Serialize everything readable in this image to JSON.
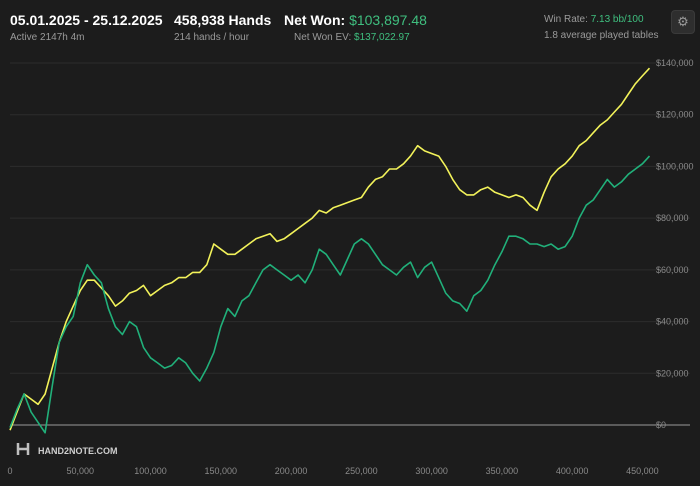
{
  "header": {
    "date_range": "05.01.2025 - 25.12.2025",
    "active_time": "Active 2147h 4m",
    "hands": "458,938 Hands",
    "hands_rate": "214 hands / hour",
    "net_won_label": "Net Won:",
    "net_won_value": "$103,897.48",
    "net_won_ev_label": "Net Won  EV:",
    "net_won_ev_value": "$137,022.97",
    "win_rate_label": "Win Rate:",
    "win_rate_value": "7.13 bb/100",
    "tables": "1.8 average played tables",
    "settings_icon": "gear-icon"
  },
  "logo_text": "HAND2NOTE.COM",
  "colors": {
    "net_won": "#21b07a",
    "net_won_ev": "#f2f25a",
    "background": "#1c1c1c",
    "grid": "#2d2d2d",
    "zero_line": "#9a9a9a"
  },
  "chart_data": {
    "type": "line",
    "xlim": [
      0,
      458938
    ],
    "ylim": [
      -10000,
      145000
    ],
    "x_ticks": [
      "0",
      "50,000",
      "100,000",
      "150,000",
      "200,000",
      "250,000",
      "300,000",
      "350,000",
      "400,000",
      "450,000"
    ],
    "x_tick_values": [
      0,
      50000,
      100000,
      150000,
      200000,
      250000,
      300000,
      350000,
      400000,
      450000
    ],
    "y_ticks": [
      "$0",
      "$20,000",
      "$40,000",
      "$60,000",
      "$80,000",
      "$100,000",
      "$120,000",
      "$140,000"
    ],
    "y_tick_values": [
      0,
      20000,
      40000,
      60000,
      80000,
      100000,
      120000,
      140000
    ],
    "grid": true,
    "series": [
      {
        "name": "Net Won EV",
        "color": "#f2f25a",
        "x": [
          0,
          5000,
          10000,
          15000,
          20000,
          25000,
          30000,
          35000,
          40000,
          45000,
          50000,
          55000,
          60000,
          65000,
          70000,
          75000,
          80000,
          85000,
          90000,
          95000,
          100000,
          105000,
          110000,
          115000,
          120000,
          125000,
          130000,
          135000,
          140000,
          145000,
          150000,
          155000,
          160000,
          165000,
          170000,
          175000,
          180000,
          185000,
          190000,
          195000,
          200000,
          205000,
          210000,
          215000,
          220000,
          225000,
          230000,
          235000,
          240000,
          245000,
          250000,
          255000,
          260000,
          265000,
          270000,
          275000,
          280000,
          285000,
          290000,
          295000,
          300000,
          305000,
          310000,
          315000,
          320000,
          325000,
          330000,
          335000,
          340000,
          345000,
          350000,
          355000,
          360000,
          365000,
          370000,
          375000,
          380000,
          385000,
          390000,
          395000,
          400000,
          405000,
          410000,
          415000,
          420000,
          425000,
          430000,
          435000,
          440000,
          445000,
          450000,
          455000
        ],
        "y": [
          -2000,
          5000,
          12000,
          10000,
          8000,
          12000,
          22000,
          32000,
          40000,
          46000,
          52000,
          56000,
          56000,
          53000,
          50000,
          46000,
          48000,
          51000,
          52000,
          54000,
          50000,
          52000,
          54000,
          55000,
          57000,
          57000,
          59000,
          59000,
          62000,
          70000,
          68000,
          66000,
          66000,
          68000,
          70000,
          72000,
          73000,
          74000,
          71000,
          72000,
          74000,
          76000,
          78000,
          80000,
          83000,
          82000,
          84000,
          85000,
          86000,
          87000,
          88000,
          92000,
          95000,
          96000,
          99000,
          99000,
          101000,
          104000,
          108000,
          106000,
          105000,
          104000,
          100000,
          95000,
          91000,
          89000,
          89000,
          91000,
          92000,
          90000,
          89000,
          88000,
          89000,
          88000,
          85000,
          83000,
          90000,
          96000,
          99000,
          101000,
          104000,
          108000,
          110000,
          113000,
          116000,
          118000,
          121000,
          124000,
          128000,
          132000,
          135000,
          138000
        ]
      },
      {
        "name": "Net Won",
        "color": "#21b07a",
        "x": [
          0,
          5000,
          10000,
          15000,
          20000,
          25000,
          30000,
          35000,
          40000,
          45000,
          50000,
          55000,
          60000,
          65000,
          70000,
          75000,
          80000,
          85000,
          90000,
          95000,
          100000,
          105000,
          110000,
          115000,
          120000,
          125000,
          130000,
          135000,
          140000,
          145000,
          150000,
          155000,
          160000,
          165000,
          170000,
          175000,
          180000,
          185000,
          190000,
          195000,
          200000,
          205000,
          210000,
          215000,
          220000,
          225000,
          230000,
          235000,
          240000,
          245000,
          250000,
          255000,
          260000,
          265000,
          270000,
          275000,
          280000,
          285000,
          290000,
          295000,
          300000,
          305000,
          310000,
          315000,
          320000,
          325000,
          330000,
          335000,
          340000,
          345000,
          350000,
          355000,
          360000,
          365000,
          370000,
          375000,
          380000,
          385000,
          390000,
          395000,
          400000,
          405000,
          410000,
          415000,
          420000,
          425000,
          430000,
          435000,
          440000,
          445000,
          450000,
          455000
        ],
        "y": [
          -1000,
          6000,
          12000,
          5000,
          1000,
          -3000,
          15000,
          32000,
          38000,
          42000,
          55000,
          62000,
          58000,
          55000,
          45000,
          38000,
          35000,
          40000,
          38000,
          30000,
          26000,
          24000,
          22000,
          23000,
          26000,
          24000,
          20000,
          17000,
          22000,
          28000,
          38000,
          45000,
          42000,
          48000,
          50000,
          55000,
          60000,
          62000,
          60000,
          58000,
          56000,
          58000,
          55000,
          60000,
          68000,
          66000,
          62000,
          58000,
          64000,
          70000,
          72000,
          70000,
          66000,
          62000,
          60000,
          58000,
          61000,
          63000,
          57000,
          61000,
          63000,
          57000,
          51000,
          48000,
          47000,
          44000,
          50000,
          52000,
          56000,
          62000,
          67000,
          73000,
          73000,
          72000,
          70000,
          70000,
          69000,
          70000,
          68000,
          69000,
          73000,
          80000,
          85000,
          87000,
          91000,
          95000,
          92000,
          94000,
          97000,
          99000,
          101000,
          104000
        ]
      }
    ]
  }
}
